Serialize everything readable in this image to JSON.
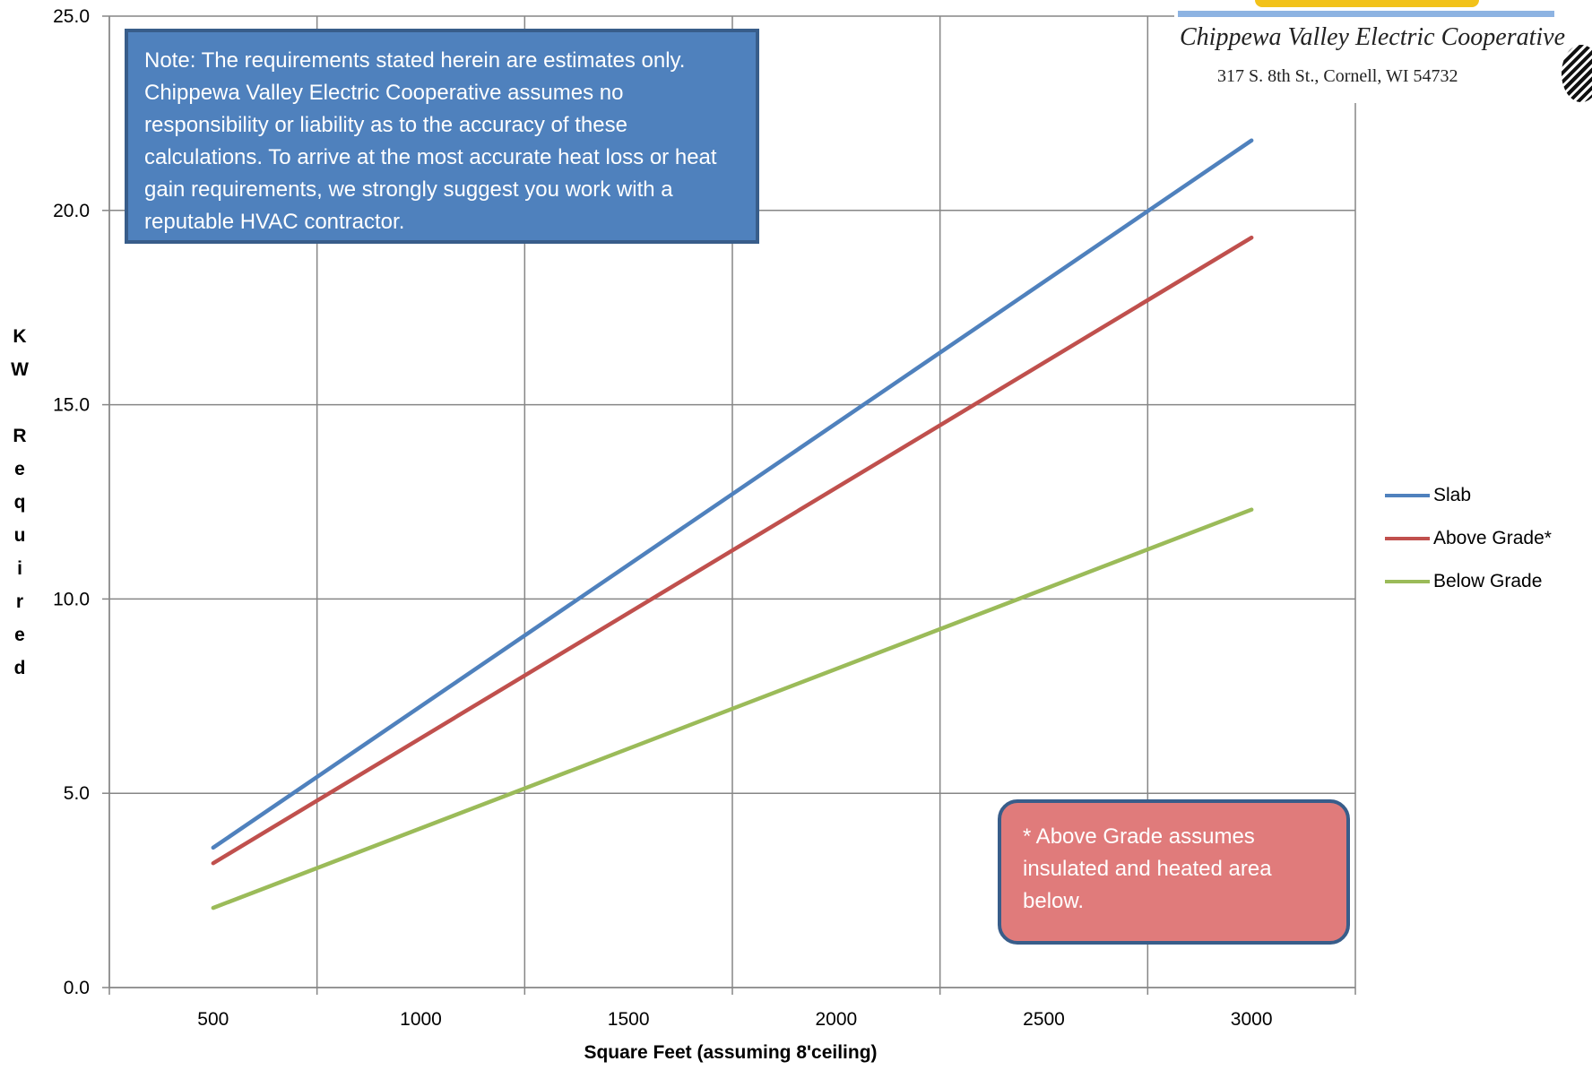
{
  "chart_data": {
    "type": "line",
    "x": [
      500,
      3000
    ],
    "series": [
      {
        "name": "Slab",
        "color": "#4f81bd",
        "values": [
          3.6,
          21.8
        ]
      },
      {
        "name": "Above Grade*",
        "color": "#c0504d",
        "values": [
          3.2,
          19.3
        ]
      },
      {
        "name": "Below Grade",
        "color": "#9bbb59",
        "values": [
          2.05,
          12.3
        ]
      }
    ],
    "xticks": [
      "500",
      "1000",
      "1500",
      "2000",
      "2500",
      "3000"
    ],
    "yticks": [
      "0.0",
      "5.0",
      "10.0",
      "15.0",
      "20.0",
      "25.0"
    ],
    "ylim": [
      0,
      25
    ],
    "xlabel": "Square Feet (assuming 8'ceiling)",
    "ylabel": "KW Required",
    "ylabel_lines": [
      "K",
      "W",
      "",
      "R",
      "e",
      "q",
      "u",
      "i",
      "r",
      "e",
      "d"
    ],
    "grid": true,
    "legend_position": "right"
  },
  "annotations": {
    "note": "Note: The requirements stated herein are estimates only. Chippewa Valley Electric Cooperative assumes no responsibility or liability as to the accuracy of these calculations. To arrive at the most accurate heat loss or heat gain requirements, we strongly suggest you work with a reputable HVAC contractor.",
    "footnote": "* Above Grade assumes insulated and heated area below."
  },
  "logo": {
    "name": "Chippewa Valley Electric Cooperative",
    "address": "317 S. 8th St., Cornell, WI  54732"
  }
}
